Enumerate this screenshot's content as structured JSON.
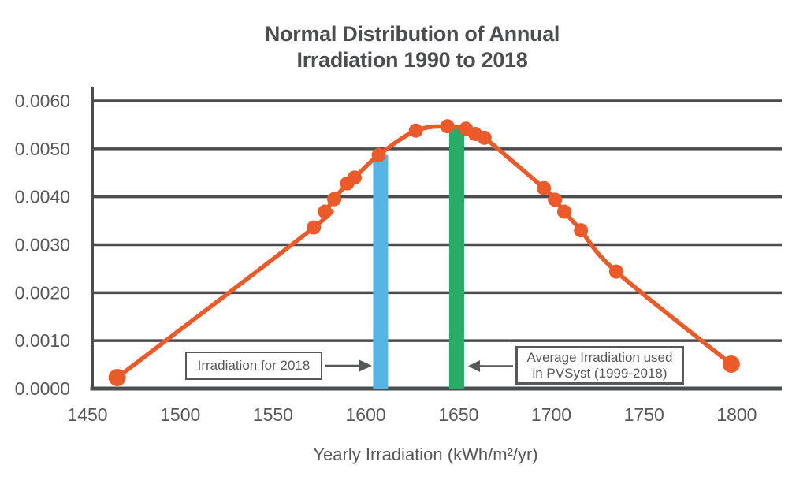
{
  "chart_data": {
    "type": "line",
    "title_line1": "Normal Distribution of Annual",
    "title_line2": "Irradiation 1990 to 2018",
    "xlabel": "Yearly Irradiation (kWh/m²/yr)",
    "x_ticks": [
      1450,
      1500,
      1550,
      1600,
      1650,
      1700,
      1750,
      1800
    ],
    "y_ticks": [
      "0.0000",
      "0.0010",
      "0.0020",
      "0.0030",
      "0.0040",
      "0.0050",
      "0.0060"
    ],
    "xlim": [
      1450,
      1824
    ],
    "ylim": [
      0,
      0.006
    ],
    "grid": true,
    "legend": "none",
    "series": [
      {
        "points": [
          [
            1466,
            0.00023
          ],
          [
            1572,
            0.00336
          ],
          [
            1578,
            0.00369
          ],
          [
            1583,
            0.00395
          ],
          [
            1590,
            0.00428
          ],
          [
            1594,
            0.0044
          ],
          [
            1607,
            0.00487
          ],
          [
            1627,
            0.00538
          ],
          [
            1644,
            0.00547
          ],
          [
            1654,
            0.00542
          ],
          [
            1659,
            0.00531
          ],
          [
            1664,
            0.00523
          ],
          [
            1696,
            0.00418
          ],
          [
            1702,
            0.00394
          ],
          [
            1707,
            0.00369
          ],
          [
            1716,
            0.0033
          ],
          [
            1735,
            0.00244
          ],
          [
            1797,
            0.00051
          ]
        ]
      }
    ],
    "bars": [
      {
        "name": "irradiation-2018",
        "x": 1608,
        "top": 0.00487,
        "color_key": "blue"
      },
      {
        "name": "average-pvsyst",
        "x": 1649,
        "top": 0.00543,
        "color_key": "green"
      }
    ],
    "annotations": [
      {
        "text": "Irradiation for 2018",
        "arrow": "right"
      },
      {
        "text_line1": "Average Irradiation used",
        "text_line2": "in PVSyst (1999-2018)",
        "arrow": "left"
      }
    ],
    "colors": {
      "curve": "#eb5a28",
      "blue": "#55b6e6",
      "green": "#29ad66",
      "grid": "#4b4c4e",
      "text": "#57585a"
    }
  }
}
